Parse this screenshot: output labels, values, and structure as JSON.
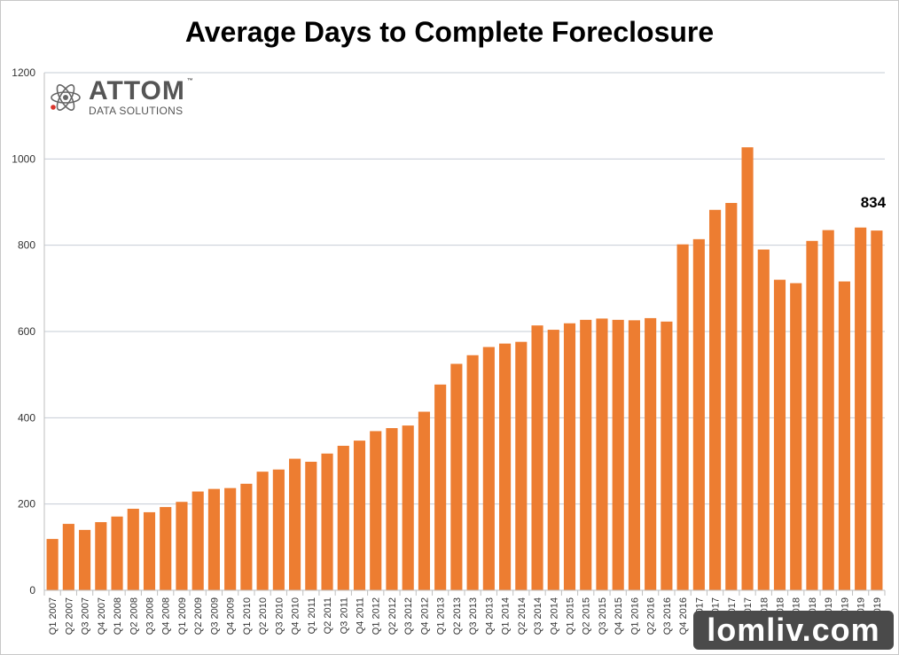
{
  "chart_data": {
    "type": "bar",
    "title": "Average Days to Complete Foreclosure",
    "xlabel": "",
    "ylabel": "",
    "ylim": [
      0,
      1200
    ],
    "yticks": [
      0,
      200,
      400,
      600,
      800,
      1000,
      1200
    ],
    "grid": true,
    "bar_color": "#ED7D31",
    "categories": [
      "Q1 2007",
      "Q2 2007",
      "Q3 2007",
      "Q4 2007",
      "Q1 2008",
      "Q2 2008",
      "Q3 2008",
      "Q4 2008",
      "Q1 2009",
      "Q2 2009",
      "Q3 2009",
      "Q4 2009",
      "Q1 2010",
      "Q2 2010",
      "Q3 2010",
      "Q4 2010",
      "Q1 2011",
      "Q2 2011",
      "Q3 2011",
      "Q4 2011",
      "Q1 2012",
      "Q2 2012",
      "Q3 2012",
      "Q4 2012",
      "Q1 2013",
      "Q2 2013",
      "Q3 2013",
      "Q4 2013",
      "Q1 2014",
      "Q2 2014",
      "Q3 2014",
      "Q4 2014",
      "Q1 2015",
      "Q2 2015",
      "Q3 2015",
      "Q4 2015",
      "Q1 2016",
      "Q2 2016",
      "Q3 2016",
      "Q4 2016",
      "Q1 2017",
      "Q2 2017",
      "Q3 2017",
      "Q4 2017",
      "Q1 2018",
      "Q2 2018",
      "Q3 2018",
      "Q4 2018",
      "Q1 2019",
      "Q2 2019",
      "Q3 2019",
      "Q4 2019"
    ],
    "values": [
      119,
      154,
      140,
      158,
      171,
      189,
      181,
      193,
      205,
      229,
      235,
      237,
      247,
      275,
      280,
      305,
      298,
      317,
      335,
      347,
      369,
      376,
      382,
      414,
      477,
      525,
      545,
      564,
      572,
      576,
      614,
      604,
      619,
      627,
      630,
      627,
      626,
      631,
      623,
      802,
      814,
      882,
      898,
      1027,
      790,
      720,
      712,
      810,
      835,
      716,
      841,
      834
    ],
    "annotation": {
      "category": "Q4 2019",
      "text": "834"
    }
  },
  "logo": {
    "brand": "ATTOM",
    "tm": "™",
    "sub": "DATA SOLUTIONS"
  },
  "watermark": "lomliv.com"
}
